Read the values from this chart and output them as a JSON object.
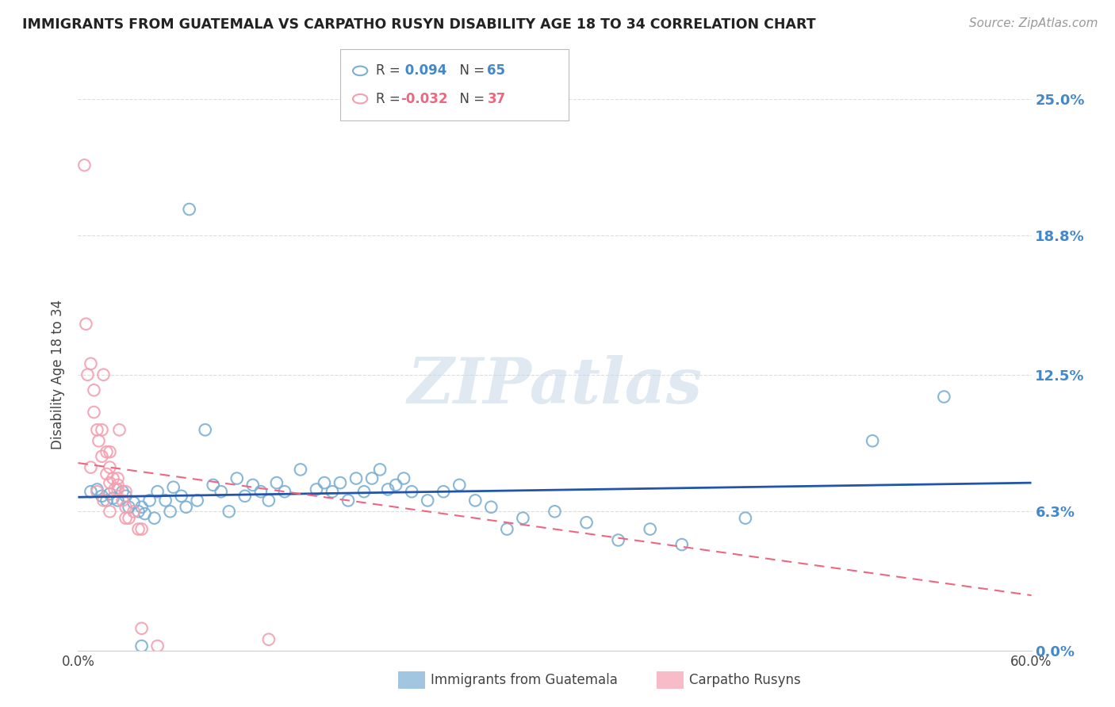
{
  "title": "IMMIGRANTS FROM GUATEMALA VS CARPATHO RUSYN DISABILITY AGE 18 TO 34 CORRELATION CHART",
  "source": "Source: ZipAtlas.com",
  "ylabel": "Disability Age 18 to 34",
  "xlim": [
    0.0,
    0.6
  ],
  "ylim": [
    0.0,
    0.25
  ],
  "yticks": [
    0.0,
    0.063,
    0.125,
    0.188,
    0.25
  ],
  "ytick_labels": [
    "0.0%",
    "6.3%",
    "12.5%",
    "18.8%",
    "25.0%"
  ],
  "xticks": [
    0.0,
    0.1,
    0.2,
    0.3,
    0.4,
    0.5,
    0.6
  ],
  "xtick_labels": [
    "0.0%",
    "",
    "",
    "",
    "",
    "",
    "60.0%"
  ],
  "blue_color": "#7BAFD4",
  "pink_color": "#F4A0B0",
  "trend_blue_color": "#2255AA",
  "trend_pink_color": "#EE6680",
  "watermark": "ZIPatlas",
  "blue_R": 0.094,
  "blue_N": 65,
  "pink_R": -0.032,
  "pink_N": 37,
  "blue_scatter_x": [
    0.008,
    0.012,
    0.015,
    0.018,
    0.02,
    0.022,
    0.025,
    0.028,
    0.03,
    0.032,
    0.035,
    0.038,
    0.04,
    0.042,
    0.045,
    0.048,
    0.05,
    0.055,
    0.058,
    0.06,
    0.065,
    0.068,
    0.07,
    0.075,
    0.08,
    0.085,
    0.09,
    0.095,
    0.1,
    0.105,
    0.11,
    0.115,
    0.12,
    0.125,
    0.13,
    0.14,
    0.15,
    0.155,
    0.16,
    0.165,
    0.17,
    0.175,
    0.18,
    0.185,
    0.19,
    0.195,
    0.2,
    0.205,
    0.21,
    0.22,
    0.23,
    0.24,
    0.25,
    0.26,
    0.27,
    0.28,
    0.3,
    0.32,
    0.34,
    0.36,
    0.38,
    0.42,
    0.5,
    0.545,
    0.04
  ],
  "blue_scatter_y": [
    0.072,
    0.073,
    0.07,
    0.068,
    0.071,
    0.069,
    0.068,
    0.072,
    0.07,
    0.065,
    0.067,
    0.063,
    0.065,
    0.062,
    0.068,
    0.06,
    0.072,
    0.068,
    0.063,
    0.074,
    0.07,
    0.065,
    0.2,
    0.068,
    0.1,
    0.075,
    0.072,
    0.063,
    0.078,
    0.07,
    0.075,
    0.072,
    0.068,
    0.076,
    0.072,
    0.082,
    0.073,
    0.076,
    0.072,
    0.076,
    0.068,
    0.078,
    0.072,
    0.078,
    0.082,
    0.073,
    0.075,
    0.078,
    0.072,
    0.068,
    0.072,
    0.075,
    0.068,
    0.065,
    0.055,
    0.06,
    0.063,
    0.058,
    0.05,
    0.055,
    0.048,
    0.06,
    0.095,
    0.115,
    0.002
  ],
  "pink_scatter_x": [
    0.004,
    0.005,
    0.006,
    0.008,
    0.01,
    0.01,
    0.012,
    0.013,
    0.015,
    0.015,
    0.016,
    0.018,
    0.018,
    0.02,
    0.02,
    0.02,
    0.022,
    0.023,
    0.025,
    0.025,
    0.026,
    0.028,
    0.03,
    0.03,
    0.032,
    0.035,
    0.038,
    0.04,
    0.05,
    0.008,
    0.012,
    0.016,
    0.02,
    0.025,
    0.03,
    0.12,
    0.04
  ],
  "pink_scatter_y": [
    0.22,
    0.148,
    0.125,
    0.13,
    0.118,
    0.108,
    0.1,
    0.095,
    0.1,
    0.088,
    0.125,
    0.09,
    0.08,
    0.09,
    0.083,
    0.076,
    0.078,
    0.073,
    0.078,
    0.073,
    0.1,
    0.068,
    0.072,
    0.065,
    0.06,
    0.063,
    0.055,
    0.055,
    0.002,
    0.083,
    0.072,
    0.068,
    0.063,
    0.075,
    0.06,
    0.005,
    0.01
  ],
  "blue_trend_x0": 0.0,
  "blue_trend_x1": 0.6,
  "blue_trend_y0": 0.0695,
  "blue_trend_y1": 0.076,
  "pink_trend_x0": 0.0,
  "pink_trend_x1": 0.6,
  "pink_trend_y0": 0.085,
  "pink_trend_y1": 0.025
}
